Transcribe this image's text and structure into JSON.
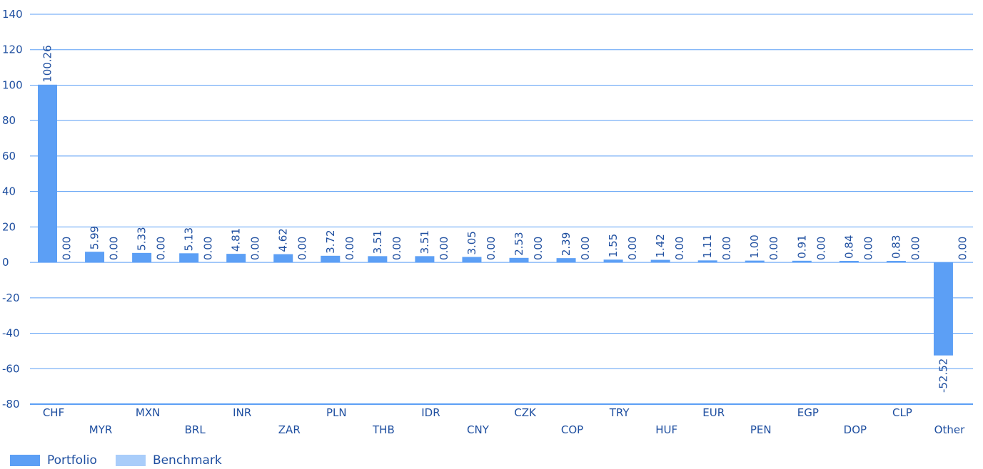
{
  "chart_data": {
    "type": "bar",
    "categories": [
      "CHF",
      "MYR",
      "MXN",
      "BRL",
      "INR",
      "ZAR",
      "PLN",
      "THB",
      "IDR",
      "CNY",
      "CZK",
      "COP",
      "TRY",
      "HUF",
      "EUR",
      "PEN",
      "EGP",
      "DOP",
      "CLP",
      "Other"
    ],
    "series": [
      {
        "name": "Portfolio",
        "color": "#5c9ff5",
        "values": [
          100.26,
          5.99,
          5.33,
          5.13,
          4.81,
          4.62,
          3.72,
          3.51,
          3.51,
          3.05,
          2.53,
          2.39,
          1.55,
          1.42,
          1.11,
          1.0,
          0.91,
          0.84,
          0.83,
          -52.52
        ],
        "labels": [
          "100.26",
          "5.99",
          "5.33",
          "5.13",
          "4.81",
          "4.62",
          "3.72",
          "3.51",
          "3.51",
          "3.05",
          "2.53",
          "2.39",
          "1.55",
          "1.42",
          "1.11",
          "1.00",
          "0.91",
          "0.84",
          "0.83",
          "-52.52"
        ]
      },
      {
        "name": "Benchmark",
        "color": "#a9cdfa",
        "values": [
          0,
          0,
          0,
          0,
          0,
          0,
          0,
          0,
          0,
          0,
          0,
          0,
          0,
          0,
          0,
          0,
          0,
          0,
          0,
          0
        ],
        "labels": [
          "0.00",
          "0.00",
          "0.00",
          "0.00",
          "0.00",
          "0.00",
          "0.00",
          "0.00",
          "0.00",
          "0.00",
          "0.00",
          "0.00",
          "0.00",
          "0.00",
          "0.00",
          "0.00",
          "0.00",
          "0.00",
          "0.00",
          "0.00"
        ]
      }
    ],
    "ylim": [
      -80,
      140
    ],
    "yticks": [
      140,
      120,
      100,
      80,
      60,
      40,
      20,
      0,
      -20,
      -40,
      -60,
      -80
    ],
    "grid": true,
    "legend_placement": "bottom-left",
    "gridline_color": "#5c9ff5",
    "text_color": "#1f4fa0"
  }
}
